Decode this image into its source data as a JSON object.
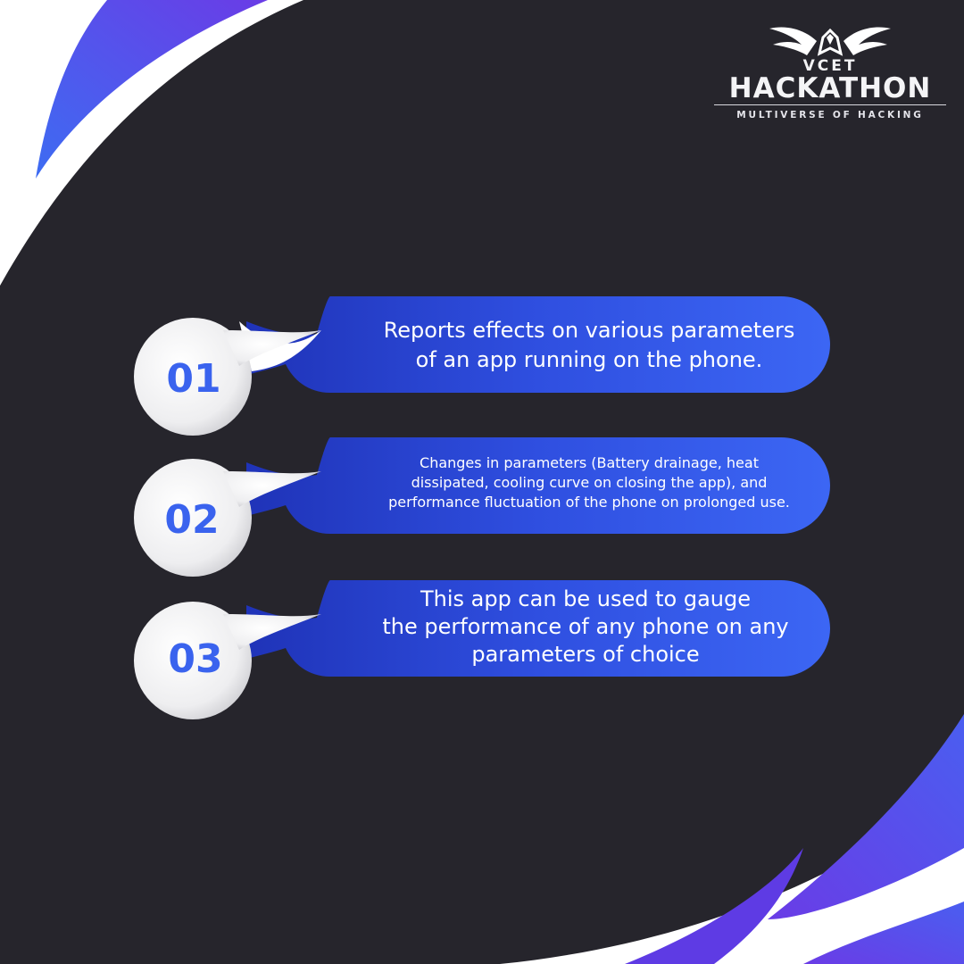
{
  "brand": {
    "event_short": "VCET",
    "event_name": "HACKATHON",
    "tagline": "MULTIVERSE OF HACKING",
    "logo_icon": "winged-crest-icon"
  },
  "colors": {
    "background": "#26252c",
    "accent_blue": "#3a63ee",
    "accent_purple": "#5a3be0",
    "bubble_white": "#f2f2f4"
  },
  "points": [
    {
      "number": "01",
      "lines": [
        "Reports effects on various parameters",
        "of an app running on the phone."
      ]
    },
    {
      "number": "02",
      "lines": [
        "Changes in parameters (Battery drainage, heat",
        "dissipated, cooling curve on closing the app), and",
        "performance fluctuation of the phone on prolonged use."
      ]
    },
    {
      "number": "03",
      "lines": [
        "This app can be used to gauge",
        "the performance of any phone on any",
        "parameters of choice"
      ]
    }
  ]
}
